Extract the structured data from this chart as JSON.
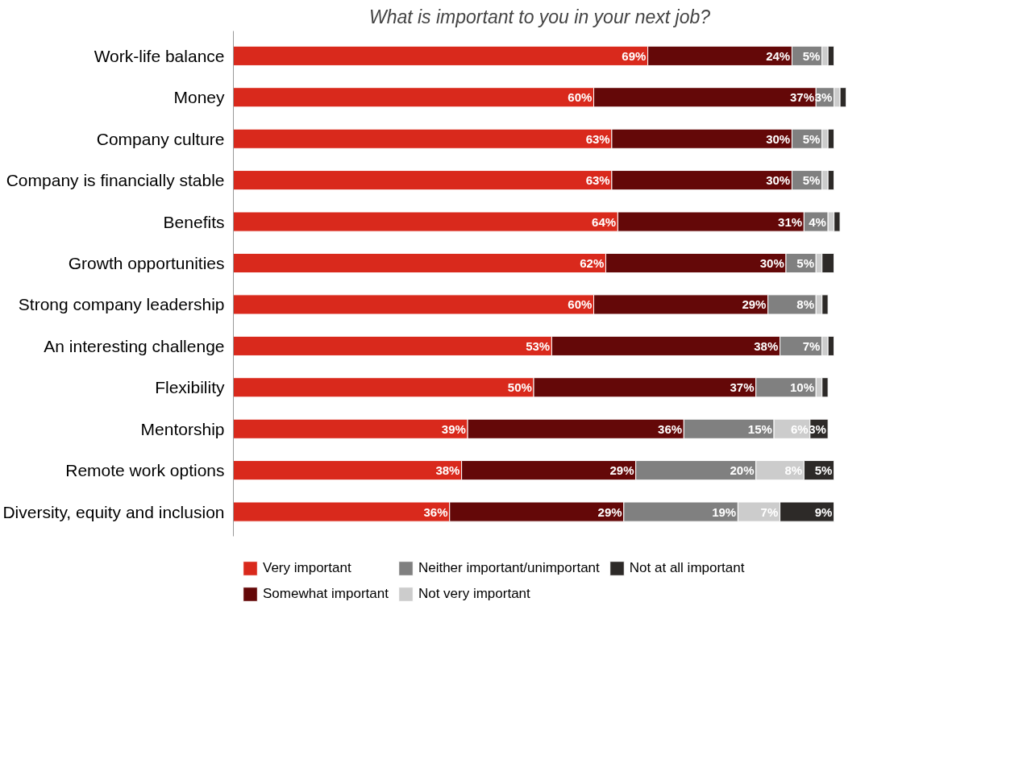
{
  "chart_data": {
    "type": "bar",
    "orientation": "horizontal",
    "stacked": true,
    "title": "What is important to you in your next job?",
    "categories": [
      "Work-life balance",
      "Money",
      "Company culture",
      "Company is financially stable",
      "Benefits",
      "Growth opportunities",
      "Strong company leadership",
      "An interesting challenge",
      "Flexibility",
      "Mentorship",
      "Remote work options",
      "Diversity, equity and inclusion"
    ],
    "series": [
      {
        "name": "Very important",
        "color": "#d9291c",
        "values": [
          69,
          60,
          63,
          63,
          64,
          62,
          60,
          53,
          50,
          39,
          38,
          36
        ],
        "value_labels": [
          "69%",
          "60%",
          "63%",
          "63%",
          "64%",
          "62%",
          "60%",
          "53%",
          "50%",
          "39%",
          "38%",
          "36%"
        ]
      },
      {
        "name": "Somewhat important",
        "color": "#640808",
        "values": [
          24,
          37,
          30,
          30,
          31,
          30,
          29,
          38,
          37,
          36,
          29,
          29
        ],
        "value_labels": [
          "24%",
          "37%",
          "30%",
          "30%",
          "31%",
          "30%",
          "29%",
          "38%",
          "37%",
          "36%",
          "29%",
          "29%"
        ]
      },
      {
        "name": "Neither important/unimportant",
        "color": "#808080",
        "values": [
          5,
          3,
          5,
          5,
          4,
          5,
          8,
          7,
          10,
          15,
          20,
          19
        ],
        "value_labels": [
          "5%",
          "3%",
          "5%",
          "5%",
          "4%",
          "5%",
          "8%",
          "7%",
          "10%",
          "15%",
          "20%",
          "19%"
        ]
      },
      {
        "name": "Not very important",
        "color": "#cccccc",
        "values": [
          1,
          1,
          1,
          1,
          1,
          1,
          1,
          1,
          1,
          6,
          8,
          7
        ],
        "value_labels": [
          null,
          null,
          null,
          null,
          null,
          null,
          null,
          null,
          null,
          "6%",
          "8%",
          "7%"
        ]
      },
      {
        "name": "Not at all important",
        "color": "#2d2a28",
        "values": [
          1,
          1,
          1,
          1,
          1,
          2,
          1,
          1,
          1,
          3,
          5,
          9
        ],
        "value_labels": [
          null,
          null,
          null,
          null,
          null,
          null,
          null,
          null,
          null,
          "3%",
          "5%",
          "9%"
        ]
      }
    ],
    "grid": false,
    "legend": "bottom",
    "tick_labels": "y"
  }
}
